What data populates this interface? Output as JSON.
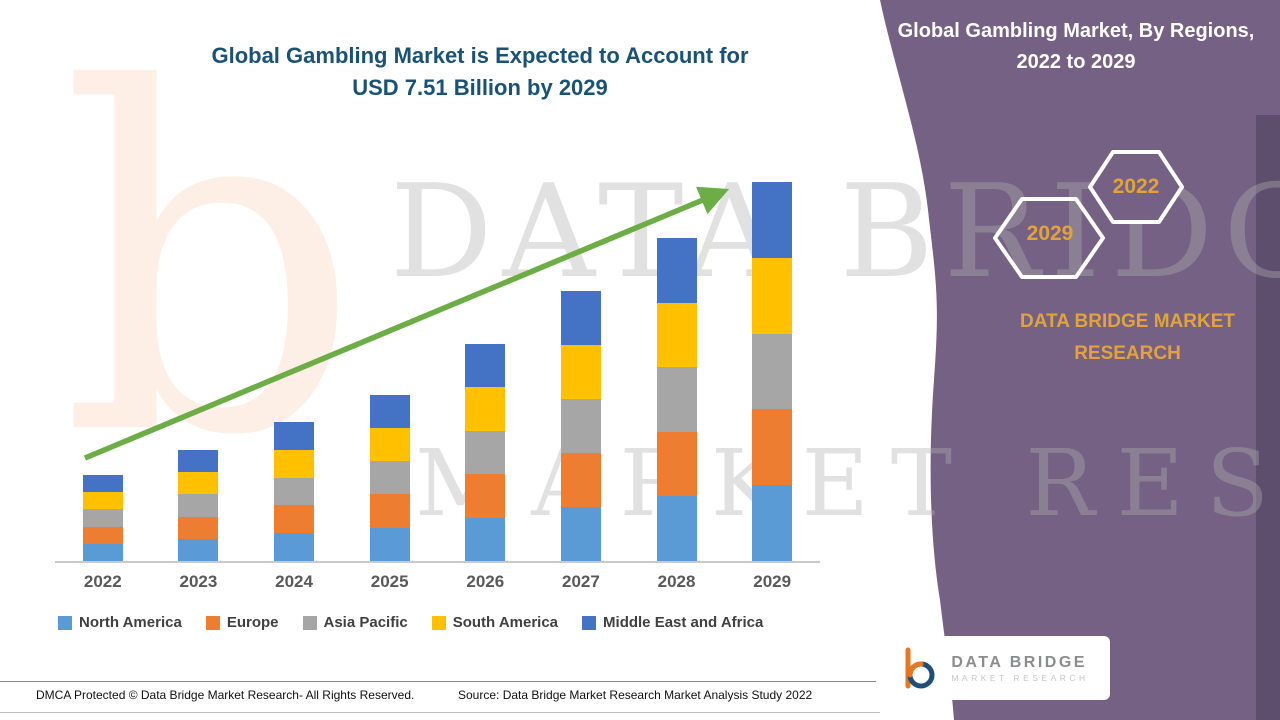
{
  "title": {
    "line1": "Global Gambling Market is Expected to Account for",
    "line2": "USD 7.51 Billion by 2029"
  },
  "side_panel": {
    "heading_line1": "Global Gambling Market, By Regions,",
    "heading_line2": "2022 to 2029",
    "hexagon_back_label": "2029",
    "hexagon_front_label": "2022",
    "brand_text": "DATA BRIDGE MARKET RESEARCH",
    "colors": {
      "panel": "#756184",
      "panel_dark": "#5E4E6D",
      "accent_gold": "#E2A33B"
    }
  },
  "watermark": {
    "letter_b": "b",
    "line1": "DATA BRIDGE",
    "line2": "MARKET RESEARCH"
  },
  "footer": {
    "dmca": "DMCA Protected © Data Bridge Market Research- All Rights Reserved.",
    "source": "Source: Data Bridge Market Research Market Analysis Study 2022"
  },
  "logo": {
    "name": "DATA BRIDGE",
    "tagline": "MARKET RESEARCH"
  },
  "chart_data": {
    "type": "bar",
    "stacked": true,
    "title": "Global Gambling Market is Expected to Account for USD 7.51 Billion by 2029",
    "unit": "USD Billion",
    "categories": [
      "2022",
      "2023",
      "2024",
      "2025",
      "2026",
      "2027",
      "2028",
      "2029"
    ],
    "series": [
      {
        "name": "North America",
        "color": "#5B9BD5",
        "values": [
          0.34,
          0.44,
          0.55,
          0.66,
          0.86,
          1.07,
          1.28,
          1.5
        ]
      },
      {
        "name": "Europe",
        "color": "#ED7D31",
        "values": [
          0.34,
          0.44,
          0.55,
          0.66,
          0.86,
          1.07,
          1.28,
          1.5
        ]
      },
      {
        "name": "Asia Pacific",
        "color": "#A6A6A6",
        "values": [
          0.34,
          0.44,
          0.55,
          0.66,
          0.86,
          1.07,
          1.28,
          1.5
        ]
      },
      {
        "name": "South America",
        "color": "#FFC000",
        "values": [
          0.34,
          0.44,
          0.55,
          0.66,
          0.86,
          1.07,
          1.28,
          1.5
        ]
      },
      {
        "name": "Middle East and Africa",
        "color": "#4472C4",
        "values": [
          0.34,
          0.44,
          0.55,
          0.66,
          0.86,
          1.07,
          1.28,
          1.5
        ]
      }
    ],
    "totals": [
      1.68,
      2.21,
      2.77,
      3.3,
      4.31,
      5.37,
      6.42,
      7.51
    ],
    "ylim": [
      0,
      8
    ],
    "grid": false,
    "legend_position": "bottom",
    "trend_arrow": true
  }
}
